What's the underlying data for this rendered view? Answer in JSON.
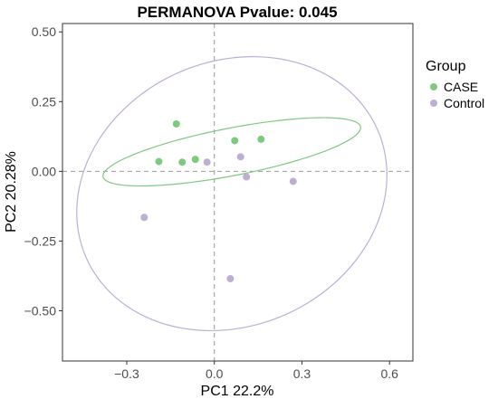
{
  "chart_data": {
    "type": "scatter",
    "title": "PERMANOVA Pvalue: 0.045",
    "xlabel": "PC1 22.2%",
    "ylabel": "PC2 20.28%",
    "xlim": [
      -0.52,
      0.68
    ],
    "ylim": [
      -0.68,
      0.53
    ],
    "xticks": [
      -0.3,
      0.0,
      0.3,
      0.6
    ],
    "xtick_labels": [
      "−0.3",
      "0.0",
      "0.3",
      "0.6"
    ],
    "yticks": [
      0.5,
      0.25,
      0.0,
      -0.25,
      -0.5
    ],
    "ytick_labels": [
      "0.50",
      "0.25",
      "0.00",
      "−0.25",
      "−0.50"
    ],
    "reference_lines": {
      "x": 0,
      "y": 0,
      "style": "dashed"
    },
    "grid": false,
    "legend": {
      "title": "Group",
      "position": "right"
    },
    "series": [
      {
        "name": "CASE",
        "color": "#7fc97f",
        "points": [
          {
            "x": -0.13,
            "y": 0.17
          },
          {
            "x": -0.19,
            "y": 0.035
          },
          {
            "x": -0.11,
            "y": 0.033
          },
          {
            "x": -0.065,
            "y": 0.043
          },
          {
            "x": 0.07,
            "y": 0.11
          },
          {
            "x": 0.16,
            "y": 0.115
          }
        ],
        "ellipse": {
          "cx": 0.06,
          "cy": 0.07,
          "rx": 0.45,
          "ry": 0.085,
          "angle_deg": 11.5
        }
      },
      {
        "name": "Control",
        "color": "#beaed4",
        "points": [
          {
            "x": -0.025,
            "y": 0.033
          },
          {
            "x": 0.09,
            "y": 0.052
          },
          {
            "x": 0.11,
            "y": -0.02
          },
          {
            "x": 0.27,
            "y": -0.036
          },
          {
            "x": -0.24,
            "y": -0.165
          },
          {
            "x": 0.055,
            "y": -0.385
          }
        ],
        "ellipse": {
          "cx": 0.06,
          "cy": -0.08,
          "rx": 0.55,
          "ry": 0.47,
          "angle_deg": 30
        }
      }
    ]
  }
}
